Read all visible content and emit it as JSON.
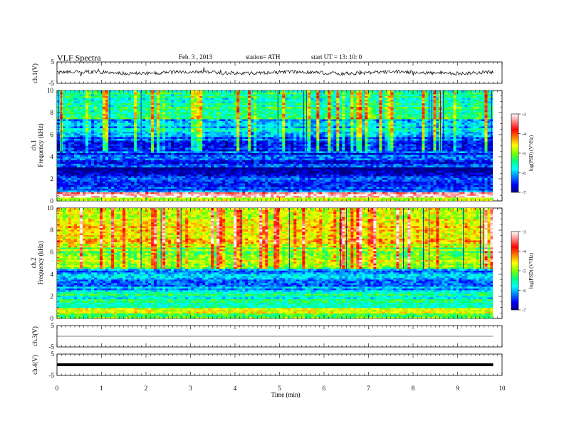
{
  "header": {
    "title": "VLF  Spectra",
    "date": "Feb. 3  , 2013",
    "station": "station= ATH",
    "start_time": "start  UT  =   13: 10: 0"
  },
  "xaxis": {
    "label": "Time  (min)",
    "ticks": [
      "0",
      "1",
      "2",
      "3",
      "4",
      "5",
      "6",
      "7",
      "8",
      "9",
      "10"
    ]
  },
  "panels": {
    "ch1_wave": {
      "label": "ch.1(V)",
      "tick_top": "5",
      "tick_bottom": "-5"
    },
    "ch1_spec": {
      "label1": "ch.1",
      "label2": "Frequency  (kHz)",
      "ticks": [
        "0",
        "2",
        "4",
        "6",
        "8",
        "10"
      ]
    },
    "ch2_spec": {
      "label1": "ch.2",
      "label2": "Frequency  (kHz)",
      "ticks": [
        "0",
        "2",
        "4",
        "6",
        "8",
        "10"
      ]
    },
    "ch3_wave": {
      "label": "ch.3(V)",
      "tick_top": "5",
      "tick_bottom": "-5"
    },
    "ch4_wave": {
      "label": "ch.4(V)",
      "tick_top": "5",
      "tick_bottom": "-5"
    }
  },
  "colorbar": {
    "label": "log(PSD) (V²/Hz)",
    "ticks": [
      "-3",
      "-4",
      "-5",
      "-6",
      "-7"
    ],
    "colors": [
      "#000080",
      "#0000ff",
      "#0080ff",
      "#00ffff",
      "#00ff80",
      "#80ff00",
      "#ffff00",
      "#ff8000",
      "#ff0000",
      "#ff8080",
      "#ffffff"
    ]
  },
  "chart_data": {
    "type": "heatmap",
    "title": "VLF  Spectra",
    "xlabel": "Time  (min)",
    "xlim": [
      0,
      10
    ],
    "data_end_min": 9.8,
    "panels": [
      {
        "name": "ch.1(V)",
        "kind": "waveform",
        "ylim": [
          -5,
          5
        ],
        "baseline": 0
      },
      {
        "name": "ch.1",
        "kind": "spectrogram",
        "ylabel": "Frequency  (kHz)",
        "ylim": [
          0,
          10
        ],
        "clim": [
          -7,
          -3
        ],
        "bands": [
          {
            "f0": 0.0,
            "f1": 0.3,
            "logpsd": -4.8
          },
          {
            "f0": 0.3,
            "f1": 0.8,
            "logpsd": -3.3
          },
          {
            "f0": 0.8,
            "f1": 2.3,
            "logpsd": -6.3
          },
          {
            "f0": 2.3,
            "f1": 3.0,
            "logpsd": -6.9
          },
          {
            "f0": 3.0,
            "f1": 5.8,
            "logpsd": -6.4
          },
          {
            "f0": 5.8,
            "f1": 7.5,
            "logpsd": -5.9
          },
          {
            "f0": 7.5,
            "f1": 10.0,
            "logpsd": -5.5
          }
        ]
      },
      {
        "name": "ch.2",
        "kind": "spectrogram",
        "ylabel": "Frequency  (kHz)",
        "ylim": [
          0,
          10
        ],
        "clim": [
          -7,
          -3
        ],
        "bands": [
          {
            "f0": 0.0,
            "f1": 0.5,
            "logpsd": -5.2
          },
          {
            "f0": 0.5,
            "f1": 1.0,
            "logpsd": -4.5
          },
          {
            "f0": 1.0,
            "f1": 2.5,
            "logpsd": -5.6
          },
          {
            "f0": 2.5,
            "f1": 4.5,
            "logpsd": -6.1
          },
          {
            "f0": 4.5,
            "f1": 6.5,
            "logpsd": -5.0
          },
          {
            "f0": 6.5,
            "f1": 10.0,
            "logpsd": -4.6
          }
        ]
      },
      {
        "name": "ch.3(V)",
        "kind": "waveform",
        "ylim": [
          -5,
          5
        ],
        "baseline": 0
      },
      {
        "name": "ch.4(V)",
        "kind": "waveform",
        "ylim": [
          -5,
          5
        ],
        "baseline": 0
      }
    ]
  }
}
